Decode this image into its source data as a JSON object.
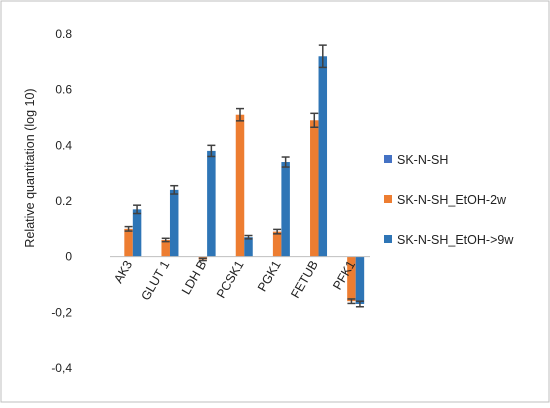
{
  "chart_data": {
    "type": "bar",
    "ylabel": "Relative quantitation (log 10)",
    "xlabel": "",
    "title": "",
    "ylim": [
      -0.4,
      0.8
    ],
    "ytick_labels": [
      "0.8",
      "0.6",
      "0.4",
      "0.2",
      "0",
      "-0,2",
      "-0,4"
    ],
    "ytick_values": [
      0.8,
      0.6,
      0.4,
      0.2,
      0,
      -0.2,
      -0.4
    ],
    "grid": false,
    "legend_position": "right",
    "categories": [
      "AK3",
      "GLUT 1",
      "LDH B",
      "PCSK1",
      "PGK1",
      "FETUB",
      "PFK1"
    ],
    "series": [
      {
        "name": "SK-N-SH",
        "color": "#4472c4",
        "values": [
          0,
          0,
          0,
          0,
          0,
          0,
          0
        ],
        "errors": [
          0,
          0,
          0,
          0,
          0,
          0,
          0
        ]
      },
      {
        "name": "SK-N-SH_EtOH-2w",
        "color": "#ed7d31",
        "values": [
          0.1,
          0.06,
          -0.01,
          0.51,
          0.09,
          0.49,
          -0.16
        ],
        "errors": [
          0.008,
          0.006,
          0.004,
          0.022,
          0.008,
          0.025,
          0.008
        ]
      },
      {
        "name": "SK-N-SH_EtOH->9w",
        "color": "#2e75b6",
        "values": [
          0.17,
          0.24,
          0.38,
          0.07,
          0.34,
          0.72,
          -0.17
        ],
        "errors": [
          0.015,
          0.015,
          0.02,
          0.006,
          0.018,
          0.04,
          0.01
        ]
      }
    ]
  }
}
